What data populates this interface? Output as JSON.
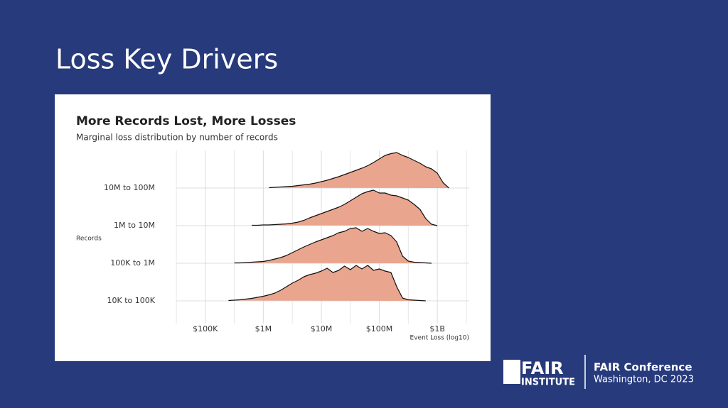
{
  "slide": {
    "title": "Loss Key Drivers"
  },
  "footer": {
    "logo_top": "FAIR",
    "logo_bottom": "INSTITUTE",
    "event": "FAIR Conference",
    "place": "Washington, DC 2023"
  },
  "chart_data": {
    "type": "ridgeline",
    "title": "More Records Lost, More Losses",
    "subtitle": "Marginal loss distribution by number of records",
    "y_label": "Records",
    "x_label": "Event Loss (log10)",
    "log_x": true,
    "grid": true,
    "color": "#e9a58e",
    "xlim": [
      31623,
      3548134000
    ],
    "xticks": [
      {
        "value": 100000,
        "label": "$100K"
      },
      {
        "value": 1000000,
        "label": "$1M"
      },
      {
        "value": 10000000,
        "label": "$10M"
      },
      {
        "value": 100000000,
        "label": "$100M"
      },
      {
        "value": 1000000000,
        "label": "$1B"
      }
    ],
    "x": [
      31623,
      39811,
      50119,
      63096,
      79433,
      100000,
      125893,
      158489,
      199526,
      251189,
      316228,
      398107,
      501187,
      630957,
      794328,
      1000000,
      1258925,
      1584893,
      1995262,
      2511886,
      3162278,
      3981072,
      5011872,
      6309573,
      7943282,
      10000000,
      12589254,
      15848932,
      19952623,
      25118864,
      31622777,
      39810717,
      50118723,
      63095734,
      79432823,
      100000000,
      125892541,
      158489319,
      199526231,
      251188643,
      316227766,
      398107171,
      501187234,
      630957344,
      794328235,
      1000000000,
      1258925412,
      1584893192,
      1995262315,
      2511886432,
      3162277660
    ],
    "series": [
      {
        "name": "10M to 100M",
        "values": [
          null,
          null,
          null,
          null,
          null,
          null,
          null,
          null,
          null,
          null,
          null,
          null,
          null,
          null,
          null,
          null,
          0.01,
          0.02,
          0.03,
          0.04,
          0.05,
          0.07,
          0.09,
          0.11,
          0.14,
          0.18,
          0.22,
          0.27,
          0.32,
          0.38,
          0.44,
          0.5,
          0.56,
          0.63,
          0.72,
          0.82,
          0.92,
          0.97,
          1.0,
          0.92,
          0.86,
          0.78,
          0.7,
          0.6,
          0.54,
          0.42,
          0.15,
          0,
          null,
          null,
          null
        ]
      },
      {
        "name": "1M to 10M",
        "values": [
          null,
          null,
          null,
          null,
          null,
          null,
          null,
          null,
          null,
          null,
          null,
          null,
          null,
          0.01,
          0.01,
          0.02,
          0.02,
          0.03,
          0.04,
          0.05,
          0.07,
          0.1,
          0.15,
          0.22,
          0.28,
          0.34,
          0.4,
          0.46,
          0.52,
          0.6,
          0.7,
          0.8,
          0.9,
          0.96,
          1.0,
          0.92,
          0.92,
          0.86,
          0.84,
          0.78,
          0.72,
          0.6,
          0.46,
          0.2,
          0.04,
          0,
          null,
          null,
          null,
          null,
          null
        ]
      },
      {
        "name": "100K to 1M",
        "values": [
          null,
          null,
          null,
          null,
          null,
          null,
          null,
          null,
          null,
          null,
          0.01,
          0.01,
          0.02,
          0.03,
          0.04,
          0.05,
          0.08,
          0.12,
          0.16,
          0.22,
          0.3,
          0.38,
          0.46,
          0.53,
          0.6,
          0.66,
          0.72,
          0.78,
          0.86,
          0.9,
          0.98,
          1.0,
          0.9,
          0.98,
          0.9,
          0.84,
          0.86,
          0.78,
          0.6,
          0.2,
          0.06,
          0.03,
          0.02,
          0.01,
          0,
          null,
          null,
          null,
          null,
          null,
          null
        ]
      },
      {
        "name": "10K to 100K",
        "values": [
          null,
          null,
          null,
          null,
          null,
          null,
          null,
          null,
          null,
          0.01,
          0.02,
          0.03,
          0.05,
          0.07,
          0.1,
          0.13,
          0.17,
          0.22,
          0.3,
          0.4,
          0.5,
          0.58,
          0.68,
          0.74,
          0.78,
          0.84,
          0.92,
          0.8,
          0.86,
          0.98,
          0.88,
          1.0,
          0.9,
          1.0,
          0.86,
          0.9,
          0.84,
          0.8,
          0.4,
          0.08,
          0.03,
          0.02,
          0.01,
          0,
          null,
          null,
          null,
          null,
          null,
          null,
          null
        ]
      }
    ]
  }
}
